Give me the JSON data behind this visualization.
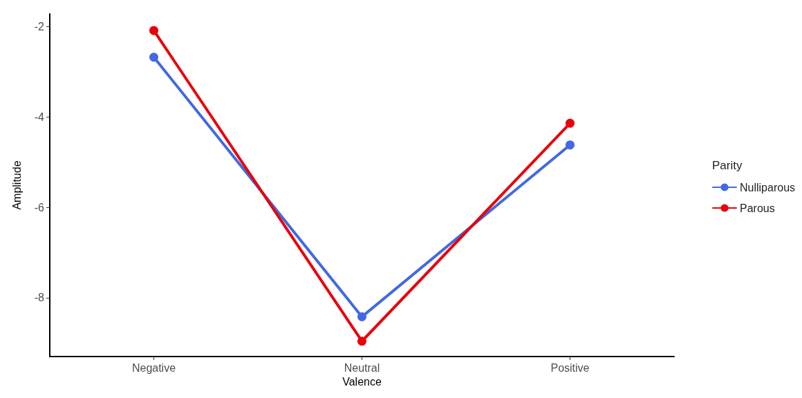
{
  "chart_data": {
    "type": "line",
    "xlabel": "Valence",
    "ylabel": "Amplitude",
    "legend_title": "Parity",
    "categories": [
      "Negative",
      "Neutral",
      "Positive"
    ],
    "series": [
      {
        "name": "Nulliparous",
        "color": "#4169e1",
        "values": [
          -2.68,
          -8.42,
          -4.62
        ]
      },
      {
        "name": "Parous",
        "color": "#e8000b",
        "values": [
          -2.09,
          -8.96,
          -4.14
        ]
      }
    ],
    "ylim": [
      -9.3,
      -1.72
    ],
    "yticks": [
      -8,
      -6,
      -4,
      -2
    ],
    "grid": false,
    "legend": "right",
    "marker": "circle",
    "line_style": "solid"
  }
}
